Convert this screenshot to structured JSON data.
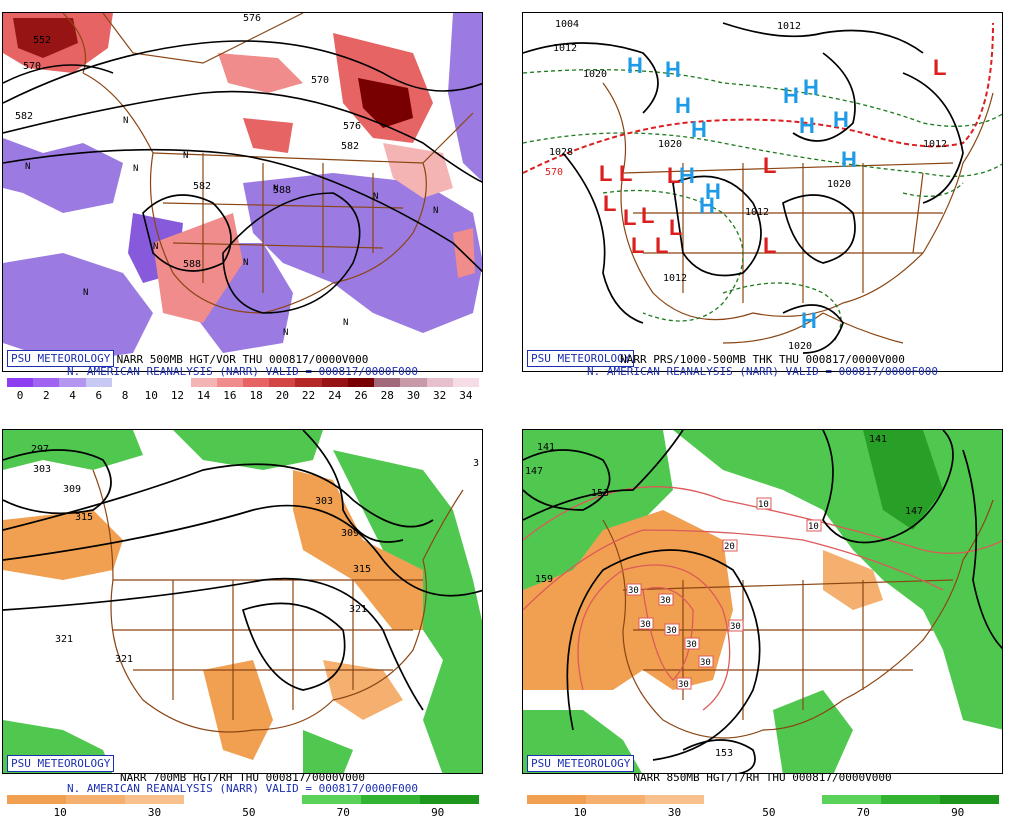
{
  "badge_text": "PSU METEOROLOGY",
  "panels": [
    {
      "id": "p1",
      "caption_line1": "NARR 500MB HGT/VOR THU 000817/0000V000",
      "caption_line2": "N. AMERICAN REANALYSIS (NARR) VALID = 000817/0000F000",
      "colorbar": {
        "colors": [
          "#8c3ef0",
          "#a064f0",
          "#b496f0",
          "#c8c8f5",
          "#ffffff",
          "#ffffff",
          "#ffffff",
          "#f5b4b4",
          "#f08c8c",
          "#e66464",
          "#d24646",
          "#b42828",
          "#961414",
          "#780000",
          "#a06a7a",
          "#c89aa8",
          "#e6c0cc",
          "#f5dce6"
        ],
        "ticks": [
          "0",
          "2",
          "4",
          "6",
          "8",
          "10",
          "12",
          "14",
          "16",
          "18",
          "20",
          "22",
          "24",
          "26",
          "28",
          "30",
          "32",
          "34"
        ]
      },
      "contour_labels": [
        "552",
        "570",
        "582",
        "570",
        "582",
        "576",
        "582",
        "588",
        "588",
        "576"
      ],
      "symbol_labels": [
        "N",
        "N",
        "N",
        "N",
        "N",
        "N",
        "N",
        "N",
        "N",
        "N",
        "N",
        "N"
      ]
    },
    {
      "id": "p2",
      "caption_line1": "NARR PRS/1000-500MB THK THU 000817/0000V000",
      "caption_line2": "N. AMERICAN REANALYSIS (NARR) VALID = 000817/0000F000",
      "colorbar": null,
      "contour_labels": [
        "1004",
        "1012",
        "1020",
        "1012",
        "1028",
        "1020",
        "1012",
        "1012",
        "1020",
        "1020",
        "1012",
        "570"
      ],
      "high_symbols": [
        "H",
        "H",
        "H",
        "H",
        "H",
        "H",
        "H",
        "H",
        "H",
        "H",
        "H",
        "H",
        "H"
      ],
      "low_symbols": [
        "L",
        "L",
        "L",
        "L",
        "L",
        "L",
        "L",
        "L",
        "L",
        "L",
        "L",
        "L"
      ]
    },
    {
      "id": "p3",
      "caption_line1": "NARR 700MB HGT/RH THU 000817/0000V000",
      "caption_line2": "N. AMERICAN REANALYSIS (NARR) VALID = 000817/0000F000",
      "colorbar": {
        "colors": [
          "#f0a050",
          "#f0a050",
          "#f5b070",
          "#f5b070",
          "#f7c08c",
          "#f7c08c",
          "#ffffff",
          "#ffffff",
          "#ffffff",
          "#ffffff",
          "#5ad25a",
          "#5ad25a",
          "#32b432",
          "#32b432",
          "#1e961e",
          "#1e961e"
        ],
        "ticks": [
          "10",
          "30",
          "50",
          "70",
          "90"
        ]
      },
      "contour_labels": [
        "297",
        "303",
        "309",
        "315",
        "321",
        "321",
        "303",
        "309",
        "315",
        "321",
        "3"
      ]
    },
    {
      "id": "p4",
      "caption_line1": "NARR 850MB HGT/T/RH THU 000817/0000V000",
      "caption_line2": "",
      "colorbar": {
        "colors": [
          "#f0a050",
          "#f0a050",
          "#f5b070",
          "#f5b070",
          "#f7c08c",
          "#f7c08c",
          "#ffffff",
          "#ffffff",
          "#ffffff",
          "#ffffff",
          "#5ad25a",
          "#5ad25a",
          "#32b432",
          "#32b432",
          "#1e961e",
          "#1e961e"
        ],
        "ticks": [
          "10",
          "30",
          "50",
          "70",
          "90"
        ]
      },
      "contour_labels": [
        "141",
        "147",
        "153",
        "159",
        "153",
        "141",
        "147"
      ],
      "temp_labels": [
        "10",
        "10",
        "20",
        "30",
        "30",
        "30",
        "30",
        "30",
        "30",
        "30",
        "30"
      ]
    }
  ],
  "colors": {
    "map_border": "#8b4513",
    "contour": "#000000",
    "high": "#1e9be6",
    "low": "#dc1e1e",
    "thickness": "#1e7a1e",
    "badge": "#1c2fb0"
  }
}
